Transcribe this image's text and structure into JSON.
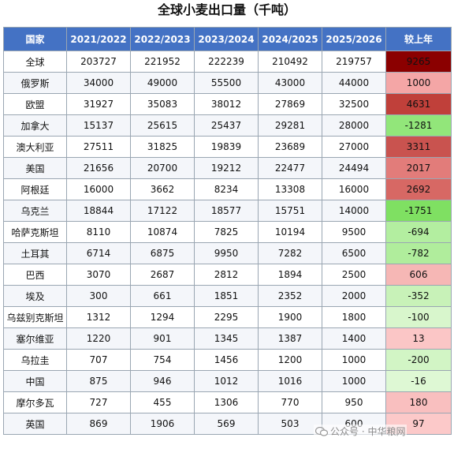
{
  "title": "全球小麦出口量（千吨）",
  "headers": [
    "国家",
    "2021/2022",
    "2022/2023",
    "2023/2024",
    "2024/2025",
    "2025/2026",
    "较上年"
  ],
  "rows": [
    {
      "country": "全球",
      "values": [
        "203727",
        "221952",
        "222239",
        "210492",
        "219757"
      ],
      "change": "9265",
      "change_color": "#8b0000"
    },
    {
      "country": "俄罗斯",
      "values": [
        "34000",
        "49000",
        "55500",
        "43000",
        "44000"
      ],
      "change": "1000",
      "change_color": "#f4a6a6"
    },
    {
      "country": "欧盟",
      "values": [
        "31927",
        "35083",
        "38012",
        "27869",
        "32500"
      ],
      "change": "4631",
      "change_color": "#c0403a"
    },
    {
      "country": "加拿大",
      "values": [
        "15137",
        "25615",
        "25437",
        "29281",
        "28000"
      ],
      "change": "-1281",
      "change_color": "#92e67a"
    },
    {
      "country": "澳大利亚",
      "values": [
        "27511",
        "31825",
        "19839",
        "23689",
        "27000"
      ],
      "change": "3311",
      "change_color": "#c9534f"
    },
    {
      "country": "美国",
      "values": [
        "21656",
        "20700",
        "19212",
        "22477",
        "24494"
      ],
      "change": "2017",
      "change_color": "#e27c7a"
    },
    {
      "country": "阿根廷",
      "values": [
        "16000",
        "3662",
        "8234",
        "13308",
        "16000"
      ],
      "change": "2692",
      "change_color": "#d76864"
    },
    {
      "country": "乌克兰",
      "values": [
        "18844",
        "17122",
        "18577",
        "15751",
        "14000"
      ],
      "change": "-1751",
      "change_color": "#7fe062"
    },
    {
      "country": "哈萨克斯坦",
      "values": [
        "8110",
        "10874",
        "7825",
        "10194",
        "9500"
      ],
      "change": "-694",
      "change_color": "#b3eea0"
    },
    {
      "country": "土耳其",
      "values": [
        "6714",
        "6875",
        "9950",
        "7282",
        "6500"
      ],
      "change": "-782",
      "change_color": "#b0ed9c"
    },
    {
      "country": "巴西",
      "values": [
        "3070",
        "2687",
        "2812",
        "1894",
        "2500"
      ],
      "change": "606",
      "change_color": "#f6b7b5"
    },
    {
      "country": "埃及",
      "values": [
        "300",
        "661",
        "1851",
        "2352",
        "2000"
      ],
      "change": "-352",
      "change_color": "#c8f2b8"
    },
    {
      "country": "乌兹别克斯坦",
      "values": [
        "1312",
        "1294",
        "2295",
        "1900",
        "1800"
      ],
      "change": "-100",
      "change_color": "#d8f6cc"
    },
    {
      "country": "塞尔维亚",
      "values": [
        "1220",
        "901",
        "1345",
        "1387",
        "1400"
      ],
      "change": "13",
      "change_color": "#fbc6c6"
    },
    {
      "country": "乌拉圭",
      "values": [
        "707",
        "754",
        "1456",
        "1200",
        "1000"
      ],
      "change": "-200",
      "change_color": "#d2f5c5"
    },
    {
      "country": "中国",
      "values": [
        "875",
        "946",
        "1012",
        "1016",
        "1000"
      ],
      "change": "-16",
      "change_color": "#def8d4"
    },
    {
      "country": "摩尔多瓦",
      "values": [
        "727",
        "455",
        "1306",
        "770",
        "950"
      ],
      "change": "180",
      "change_color": "#f9bfbf"
    },
    {
      "country": "英国",
      "values": [
        "869",
        "1906",
        "569",
        "503",
        "600"
      ],
      "change": "97",
      "change_color": "#fcc9c9"
    }
  ],
  "watermark": "公众号 · 中华粮网",
  "watermark_icon": "wechat-icon"
}
